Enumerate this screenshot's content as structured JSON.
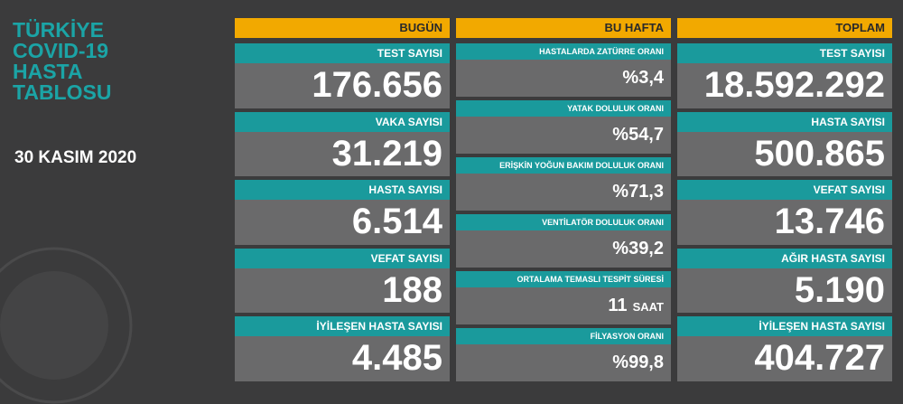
{
  "header": {
    "title_lines": [
      "TÜRKİYE",
      "COVID-19",
      "HASTA",
      "TABLOSU"
    ],
    "date": "30 KASIM 2020"
  },
  "columns": [
    {
      "title": "BUGÜN",
      "cards": [
        {
          "label": "TEST SAYISI",
          "value": "176.656"
        },
        {
          "label": "VAKA SAYISI",
          "value": "31.219"
        },
        {
          "label": "HASTA SAYISI",
          "value": "6.514"
        },
        {
          "label": "VEFAT SAYISI",
          "value": "188"
        },
        {
          "label": "İYİLEŞEN HASTA SAYISI",
          "value": "4.485"
        }
      ]
    },
    {
      "title": "BU HAFTA",
      "cards": [
        {
          "label": "HASTALARDA ZATÜRRE ORANI",
          "value": "%3,4"
        },
        {
          "label": "YATAK DOLULUK ORANI",
          "value": "%54,7"
        },
        {
          "label": "ERİŞKİN YOĞUN BAKIM DOLULUK ORANI",
          "value": "%71,3"
        },
        {
          "label": "VENTİLATÖR DOLULUK ORANI",
          "value": "%39,2"
        },
        {
          "label": "ORTALAMA TEMASLI TESPİT SÜRESİ",
          "value": "11",
          "unit": "SAAT"
        },
        {
          "label": "FİLYASYON ORANI",
          "value": "%99,8"
        }
      ]
    },
    {
      "title": "TOPLAM",
      "cards": [
        {
          "label": "TEST SAYISI",
          "value": "18.592.292"
        },
        {
          "label": "HASTA SAYISI",
          "value": "500.865"
        },
        {
          "label": "VEFAT SAYISI",
          "value": "13.746"
        },
        {
          "label": "AĞIR HASTA SAYISI",
          "value": "5.190"
        },
        {
          "label": "İYİLEŞEN HASTA SAYISI",
          "value": "404.727"
        }
      ]
    }
  ]
}
